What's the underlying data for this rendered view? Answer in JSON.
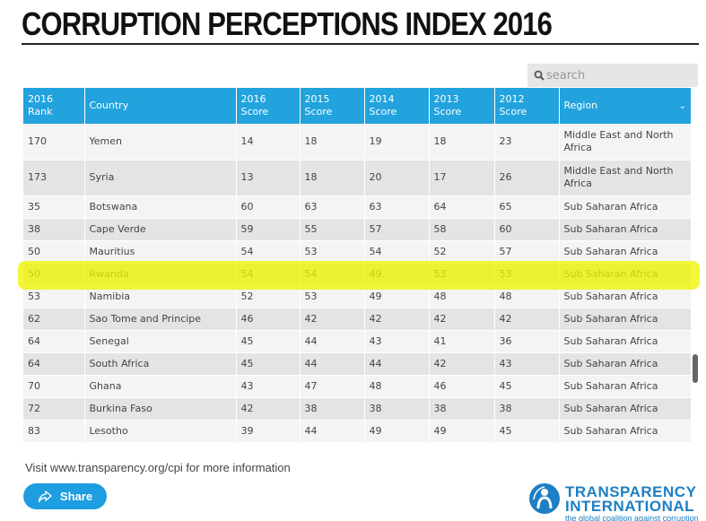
{
  "page": {
    "title": "CORRUPTION PERCEPTIONS INDEX 2016"
  },
  "search": {
    "placeholder": "search",
    "icon": "search-icon"
  },
  "table": {
    "headers": {
      "rank": "2016 Rank",
      "country": "Country",
      "s2016": "2016 Score",
      "s2015": "2015 Score",
      "s2014": "2014 Score",
      "s2013": "2013 Score",
      "s2012": "2012 Score",
      "region": "Region"
    },
    "region_sort_icon": "chevron-down-icon",
    "rows": [
      {
        "rank": "170",
        "country": "Yemen",
        "s2016": "14",
        "s2015": "18",
        "s2014": "19",
        "s2013": "18",
        "s2012": "23",
        "region": "Middle East and North Africa"
      },
      {
        "rank": "173",
        "country": "Syria",
        "s2016": "13",
        "s2015": "18",
        "s2014": "20",
        "s2013": "17",
        "s2012": "26",
        "region": "Middle East and North Africa"
      },
      {
        "rank": "35",
        "country": "Botswana",
        "s2016": "60",
        "s2015": "63",
        "s2014": "63",
        "s2013": "64",
        "s2012": "65",
        "region": "Sub Saharan Africa"
      },
      {
        "rank": "38",
        "country": "Cape Verde",
        "s2016": "59",
        "s2015": "55",
        "s2014": "57",
        "s2013": "58",
        "s2012": "60",
        "region": "Sub Saharan Africa"
      },
      {
        "rank": "50",
        "country": "Mauritius",
        "s2016": "54",
        "s2015": "53",
        "s2014": "54",
        "s2013": "52",
        "s2012": "57",
        "region": "Sub Saharan Africa"
      },
      {
        "rank": "50",
        "country": "Rwanda",
        "s2016": "54",
        "s2015": "54",
        "s2014": "49",
        "s2013": "53",
        "s2012": "53",
        "region": "Sub Saharan Africa"
      },
      {
        "rank": "53",
        "country": "Namibia",
        "s2016": "52",
        "s2015": "53",
        "s2014": "49",
        "s2013": "48",
        "s2012": "48",
        "region": "Sub Saharan Africa"
      },
      {
        "rank": "62",
        "country": "Sao Tome and Principe",
        "s2016": "46",
        "s2015": "42",
        "s2014": "42",
        "s2013": "42",
        "s2012": "42",
        "region": "Sub Saharan Africa"
      },
      {
        "rank": "64",
        "country": "Senegal",
        "s2016": "45",
        "s2015": "44",
        "s2014": "43",
        "s2013": "41",
        "s2012": "36",
        "region": "Sub Saharan Africa"
      },
      {
        "rank": "64",
        "country": "South Africa",
        "s2016": "45",
        "s2015": "44",
        "s2014": "44",
        "s2013": "42",
        "s2012": "43",
        "region": "Sub Saharan Africa"
      },
      {
        "rank": "70",
        "country": "Ghana",
        "s2016": "43",
        "s2015": "47",
        "s2014": "48",
        "s2013": "46",
        "s2012": "45",
        "region": "Sub Saharan Africa"
      },
      {
        "rank": "72",
        "country": "Burkina Faso",
        "s2016": "42",
        "s2015": "38",
        "s2014": "38",
        "s2013": "38",
        "s2012": "38",
        "region": "Sub Saharan Africa"
      },
      {
        "rank": "83",
        "country": "Lesotho",
        "s2016": "39",
        "s2015": "44",
        "s2014": "49",
        "s2013": "49",
        "s2012": "45",
        "region": "Sub Saharan Africa"
      }
    ],
    "highlighted_country": "Rwanda"
  },
  "footer": {
    "visit_text": "Visit www.transparency.org/cpi for more information",
    "share_label": "Share",
    "share_icon": "share-icon",
    "logo_line1": "TRANSPARENCY",
    "logo_line2": "INTERNATIONAL",
    "logo_tagline": "the global coalition against corruption"
  },
  "colors": {
    "header_bg": "#22a3dd",
    "highlight": "#eef500",
    "share_bg": "#1e9de0",
    "logo_blue": "#1d7fc4"
  }
}
